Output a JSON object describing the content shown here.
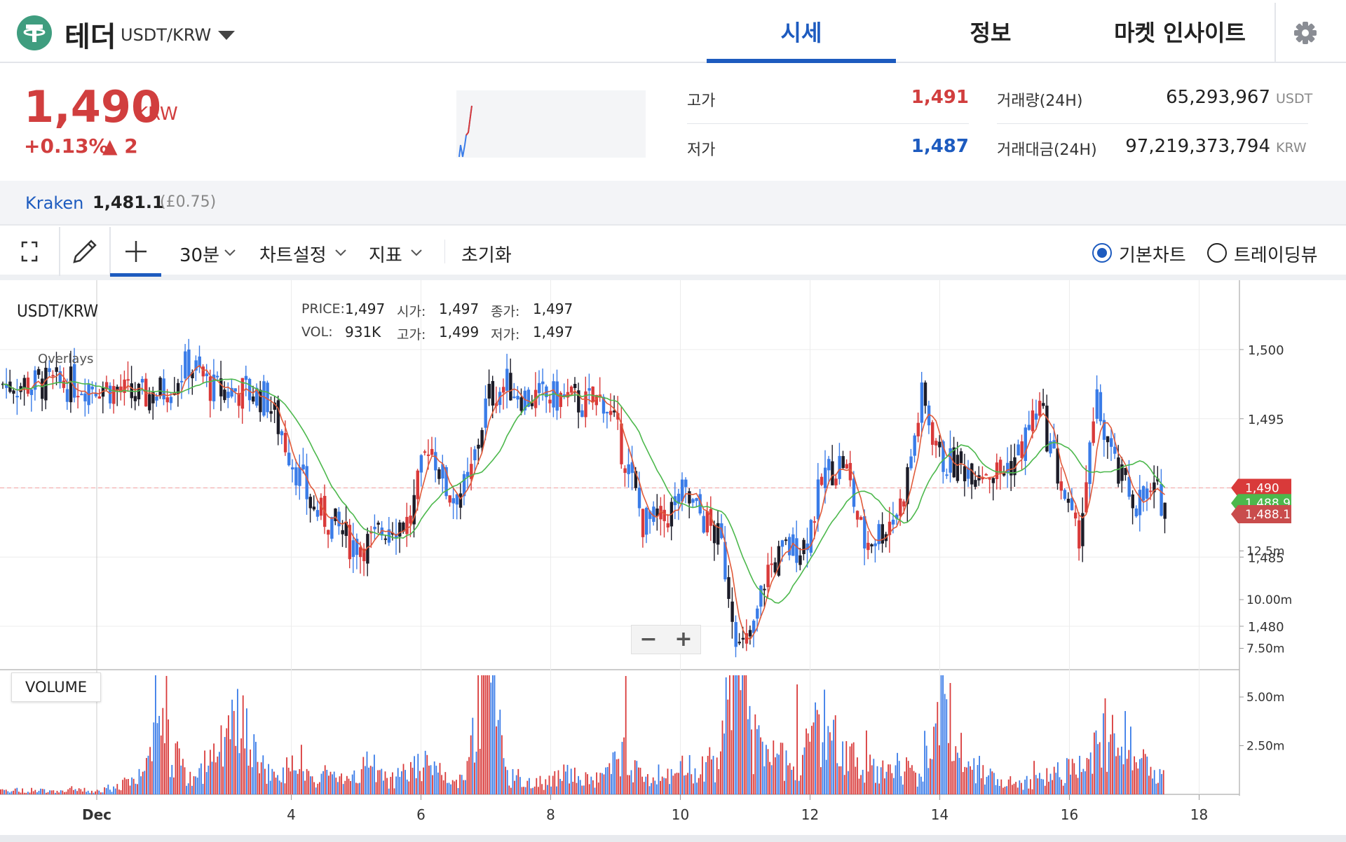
{
  "header": {
    "coin_name": "테더",
    "pair": "USDT/KRW",
    "tabs": [
      {
        "label": "시세",
        "active": true
      },
      {
        "label": "정보",
        "active": false
      },
      {
        "label": "마켓 인사이트",
        "active": false
      }
    ]
  },
  "price": {
    "current": "1,490",
    "unit": "KRW",
    "change_pct": "+0.13%",
    "change_abs": "▲ 2"
  },
  "stats": {
    "high_label": "고가",
    "high_value": "1,491",
    "low_label": "저가",
    "low_value": "1,487",
    "volume_label": "거래량(24H)",
    "volume_value": "65,293,967",
    "volume_unit": "USDT",
    "amount_label": "거래대금(24H)",
    "amount_value": "97,219,373,794",
    "amount_unit": "KRW"
  },
  "exchange": {
    "name": "Kraken",
    "price": "1,481.1",
    "diff": "(£0.75)"
  },
  "toolbar": {
    "interval": "30분",
    "chart_settings": "차트설정",
    "indicators": "지표",
    "reset": "초기화",
    "basic_chart": "기본차트",
    "trading_view": "트레이딩뷰"
  },
  "chart": {
    "symbol": "USDT/KRW",
    "ohlc_labels": {
      "price": "PRICE:",
      "open": "시가:",
      "close": "종가:",
      "vol": "VOL:",
      "high": "고가:",
      "low": "저가:"
    },
    "ohlc_values": {
      "price": "1,497",
      "open": "1,497",
      "close": "1,497",
      "vol": "931K",
      "high": "1,499",
      "low": "1,497"
    },
    "overlays": "Overlays",
    "volume_label": "VOLUME",
    "zoom_out": "−",
    "zoom_in": "+",
    "colors": {
      "up": "#d93a3a",
      "down": "#3a7ce8",
      "black": "#1c1c28",
      "ma_short": "#e05a3a",
      "ma_long": "#4cb84c"
    }
  },
  "chart_data": {
    "type": "line",
    "title": "USDT/KRW",
    "price_ticks": [
      "1,500",
      "1,495",
      "1,485",
      "1,480"
    ],
    "volume_ticks": [
      "12.5m",
      "10.00m",
      "7.50m",
      "5.00m",
      "2.50m"
    ],
    "x_ticks": [
      "Dec",
      "4",
      "6",
      "8",
      "10",
      "12",
      "14",
      "16",
      "18"
    ],
    "price_tags": [
      {
        "label": "1,490",
        "color": "#d93a3a"
      },
      {
        "label": "1,488.9",
        "color": "#4cb84c"
      },
      {
        "label": "1,488.1",
        "color": "#c94c4c"
      }
    ],
    "ylim": [
      1476,
      1502
    ],
    "x": [
      0.0,
      0.3,
      0.6,
      1.0,
      1.4,
      1.8,
      2.2,
      2.6,
      3.0,
      3.3,
      3.6,
      3.9,
      4.2,
      4.5,
      4.8,
      5.1,
      5.4,
      5.7,
      6.0,
      6.3,
      6.6,
      6.9,
      7.2,
      7.5,
      7.8,
      8.1,
      8.4,
      8.7,
      9.0,
      9.3,
      9.6,
      9.9,
      10.1,
      10.3,
      10.6,
      10.9,
      11.2,
      11.5,
      11.8,
      12.1,
      12.4,
      12.7,
      13.0,
      13.3,
      13.6,
      13.9,
      14.2,
      14.5,
      14.8,
      15.1,
      15.4,
      15.7,
      16.0,
      16.3,
      16.6,
      16.9,
      17.2
    ],
    "series": [
      {
        "values": [
          1497.5,
          1497.0,
          1496.5,
          1497.0,
          1499.0,
          1497.0,
          1497.0,
          1496.5,
          1492.0,
          1488.5,
          1487.5,
          1486.0,
          1486.0,
          1487.5,
          1487.5,
          1493.5,
          1489.5,
          1490.0,
          1496.5,
          1497.5,
          1496.5,
          1496.5,
          1496.5,
          1496.0,
          1496.5,
          1492.5,
          1487.5,
          1487.5,
          1489.5,
          1488.0,
          1486.0,
          1478.0,
          1479.5,
          1484.0,
          1485.5,
          1486.0,
          1491.0,
          1492.0,
          1486.0,
          1487.0,
          1489.0,
          1496.5,
          1492.0,
          1491.5,
          1491.5,
          1491.0,
          1492.5,
          1496.0,
          1491.0,
          1486.0,
          1496.0,
          1491.0,
          1489.0,
          1489.5,
          1488.5,
          1488.0,
          1490.0
        ]
      }
    ],
    "volume": [
      0.3,
      0.6,
      1.0,
      4.4,
      1.0,
      2.5,
      5.0,
      1.5,
      1.8,
      1.0,
      1.5,
      0.8,
      2.2,
      1.0,
      1.6,
      2.4,
      1.0,
      1.5,
      11.0,
      1.2,
      1.0,
      0.8,
      1.5,
      1.0,
      1.1,
      3.0,
      1.3,
      1.0,
      1.8,
      2.0,
      2.5,
      13.0,
      4.0,
      2.5,
      2.5,
      2.8,
      5.5,
      3.0,
      2.0,
      1.5,
      2.0,
      1.5,
      9.0,
      1.5,
      2.0,
      1.0,
      0.8,
      1.0,
      1.5,
      2.0,
      4.0,
      5.0,
      2.5,
      1.5,
      1.0,
      2.0,
      4.0
    ]
  }
}
